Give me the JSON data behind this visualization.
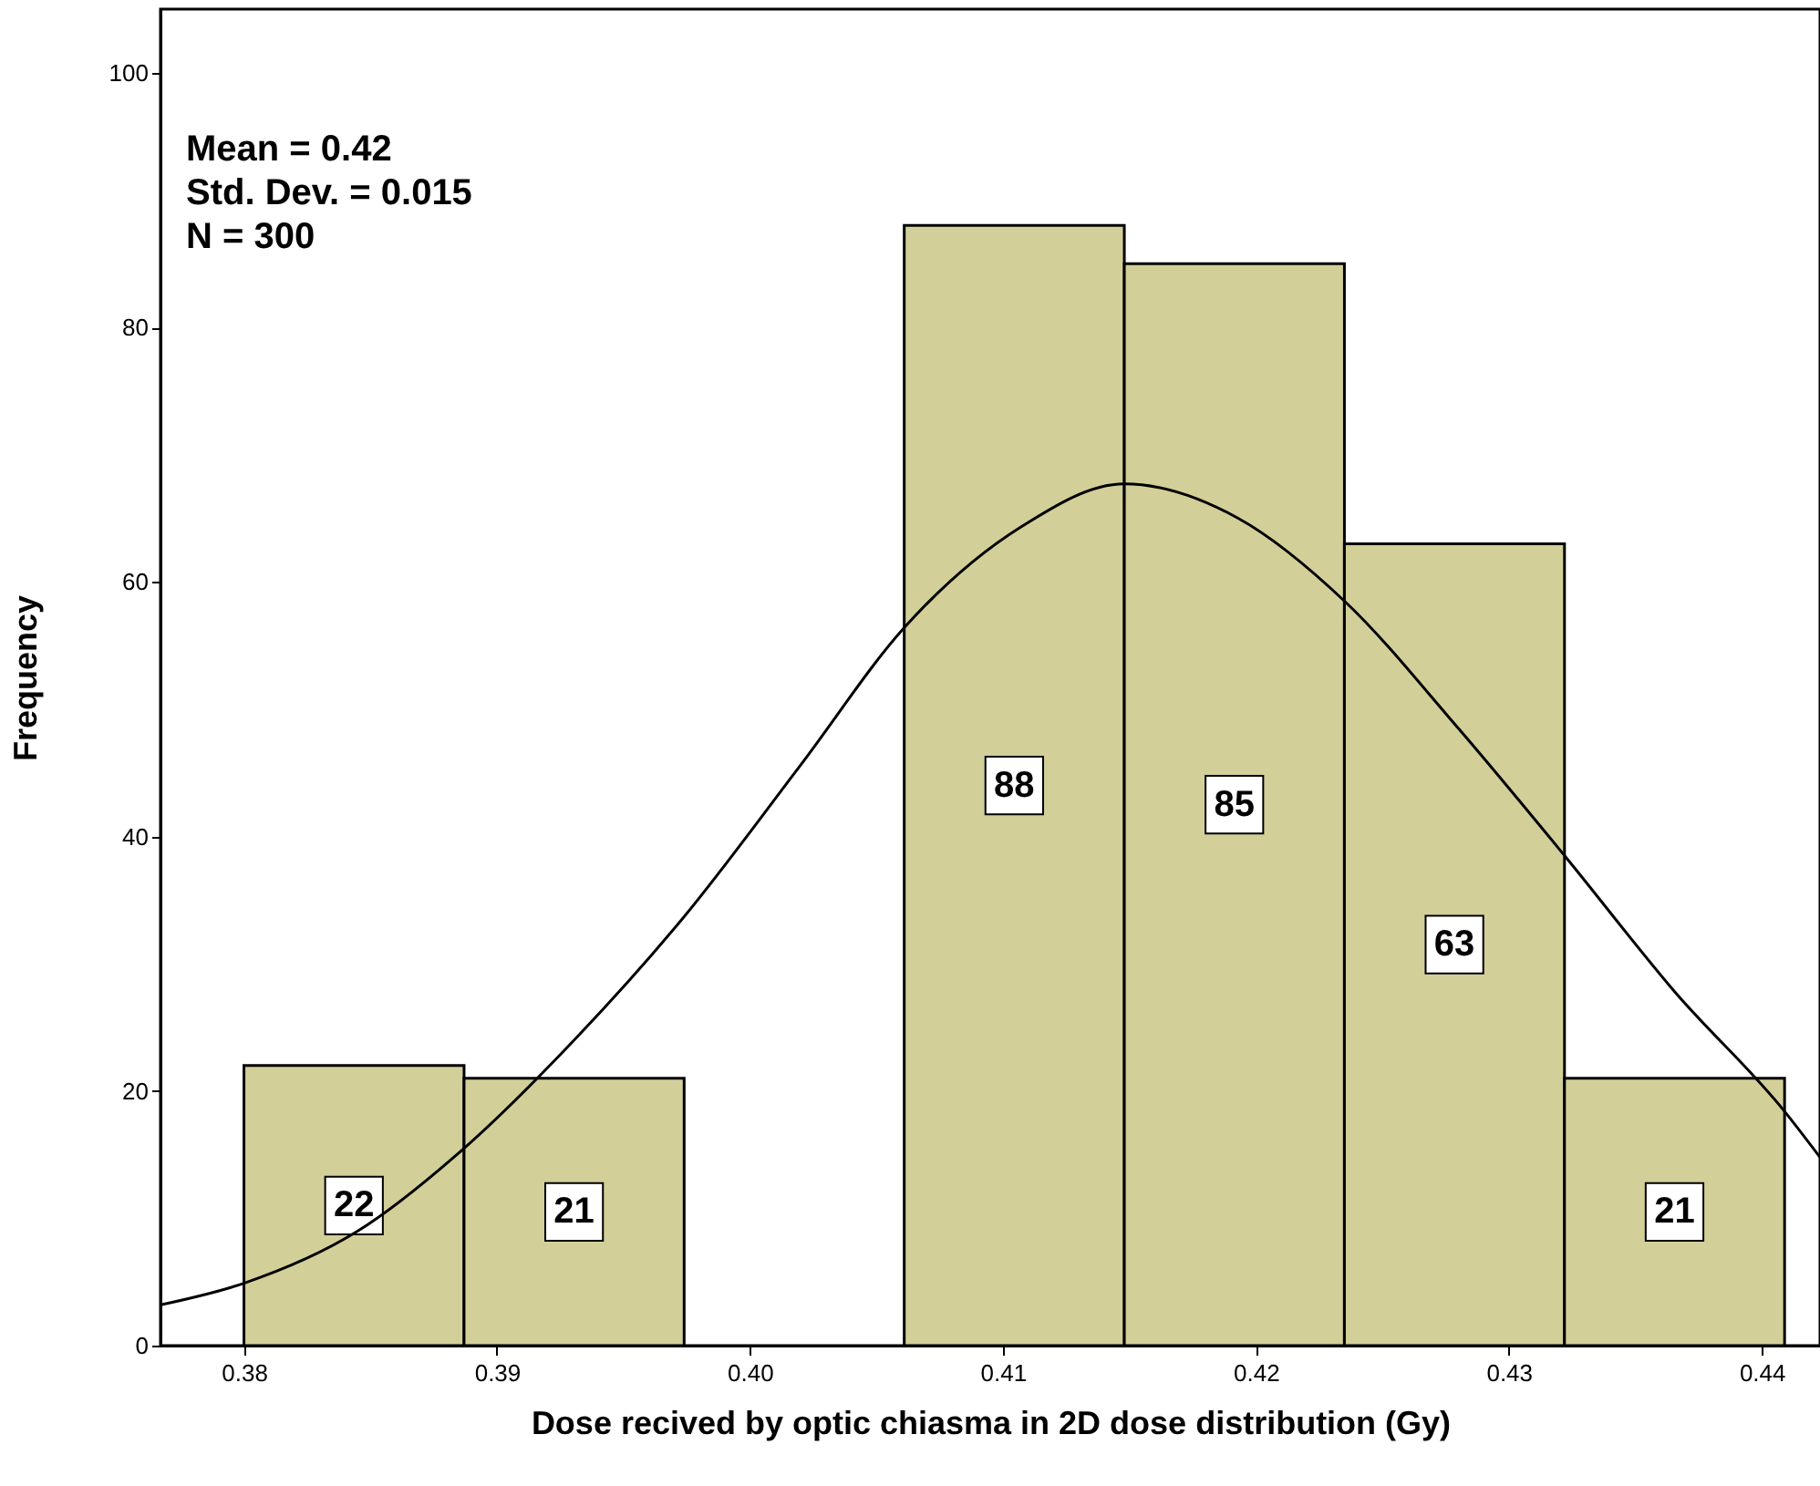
{
  "chart_data": {
    "type": "histogram",
    "xlabel": "Dose recived by optic chiasma  in 2D dose distribution (Gy)",
    "ylabel": "Frequency",
    "annotations": [
      "Mean = 0.42",
      "Std. Dev. = 0.015",
      "N = 300"
    ],
    "bins": [
      0.38,
      0.3887,
      0.3974,
      0.4061,
      0.4148,
      0.4235,
      0.4322,
      0.4409
    ],
    "series": [
      {
        "color": "#d3cf99",
        "values": [
          22,
          21,
          0,
          88,
          85,
          63,
          21
        ],
        "value_labels": [
          "22",
          "21",
          null,
          "88",
          "85",
          "63",
          "21"
        ]
      },
      {
        "type": "line",
        "color": "#000000",
        "x": [
          0.3767,
          0.38,
          0.3845,
          0.3887,
          0.3931,
          0.3974,
          0.402,
          0.4061,
          0.4107,
          0.4148,
          0.4193,
          0.4235,
          0.428,
          0.4322,
          0.4366,
          0.4409,
          0.4423
        ],
        "values": [
          3.2,
          4.9,
          9.0,
          15.5,
          24.1,
          33.7,
          45.6,
          56.4,
          64.3,
          67.7,
          65,
          58.5,
          48.5,
          38.5,
          27.7,
          18.4,
          14.8
        ]
      }
    ],
    "xlim": [
      0.3767,
      0.4423
    ],
    "ylim": [
      0,
      105
    ],
    "xticks": [
      {
        "value": 0.38,
        "label": "0.38"
      },
      {
        "value": 0.39,
        "label": "0.39"
      },
      {
        "value": 0.4,
        "label": "0.40"
      },
      {
        "value": 0.41,
        "label": "0.41"
      },
      {
        "value": 0.42,
        "label": "0.42"
      },
      {
        "value": 0.43,
        "label": "0.43"
      },
      {
        "value": 0.44,
        "label": "0.44"
      }
    ],
    "yticks": [
      0,
      20,
      40,
      60,
      80,
      100
    ]
  }
}
